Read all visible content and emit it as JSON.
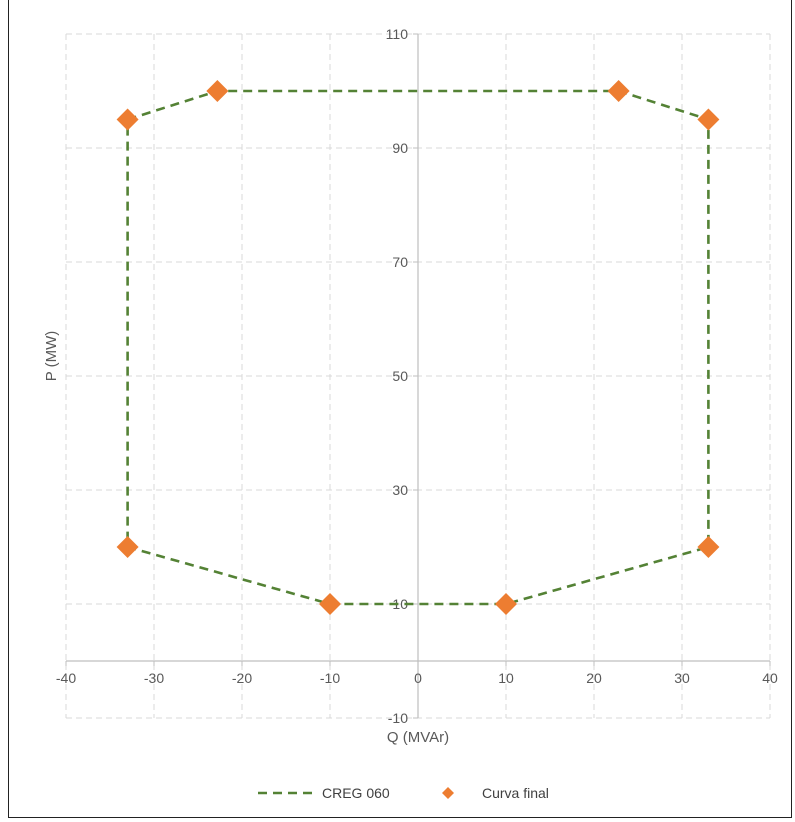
{
  "chart_data": {
    "type": "scatter",
    "title": "",
    "xlabel": "Q (MVAr)",
    "ylabel": "P (MW)",
    "xlim": [
      -40,
      40
    ],
    "ylim": [
      -10,
      110
    ],
    "x_ticks": [
      -40,
      -30,
      -20,
      -10,
      0,
      10,
      20,
      30,
      40
    ],
    "y_ticks": [
      -10,
      10,
      30,
      50,
      70,
      90,
      110
    ],
    "grid": true,
    "legend_position": "bottom",
    "series": [
      {
        "name": "CREG 060",
        "style": "dashed-line",
        "color": "#548235",
        "points": [
          {
            "x": -33,
            "y": 95
          },
          {
            "x": -22.8,
            "y": 100
          },
          {
            "x": 22.8,
            "y": 100
          },
          {
            "x": 33,
            "y": 95
          },
          {
            "x": 33,
            "y": 20
          },
          {
            "x": 10,
            "y": 10
          },
          {
            "x": -10,
            "y": 10
          },
          {
            "x": -33,
            "y": 20
          },
          {
            "x": -33,
            "y": 95
          }
        ]
      },
      {
        "name": "Curva final",
        "style": "diamond-markers",
        "color": "#ED7D31",
        "points": [
          {
            "x": -33,
            "y": 95
          },
          {
            "x": -22.8,
            "y": 100
          },
          {
            "x": 22.8,
            "y": 100
          },
          {
            "x": 33,
            "y": 95
          },
          {
            "x": 33,
            "y": 20
          },
          {
            "x": 10,
            "y": 10
          },
          {
            "x": -10,
            "y": 10
          },
          {
            "x": -33,
            "y": 20
          }
        ]
      }
    ]
  }
}
